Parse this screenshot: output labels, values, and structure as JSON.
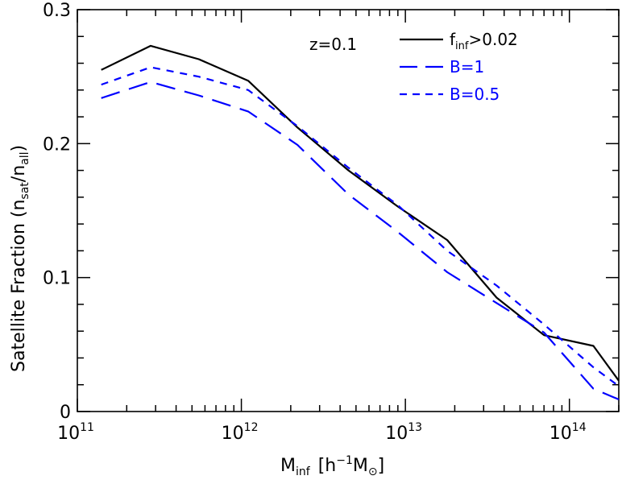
{
  "chart_data": {
    "type": "line",
    "x_scale": "log",
    "xlim": [
      100000000000.0,
      200000000000000.0
    ],
    "ylim": [
      0,
      0.3
    ],
    "grid": false,
    "legend_placement": "top-right",
    "title": "",
    "xlabel": {
      "main": "M",
      "sub": "inf",
      "bracket_open": "[h",
      "exp": "−1",
      "unit": "M",
      "unit_sub": "⊙",
      "bracket_close": "]"
    },
    "ylabel": {
      "main": "Satellite Fraction (n",
      "sub1": "sat",
      "mid": "/n",
      "sub2": "all",
      "close": ")"
    },
    "annotation": "z=0.1",
    "x_ticks": [
      {
        "value": 100000000000.0,
        "base": "10",
        "exp": "11"
      },
      {
        "value": 1000000000000.0,
        "base": "10",
        "exp": "12"
      },
      {
        "value": 10000000000000.0,
        "base": "10",
        "exp": "13"
      },
      {
        "value": 100000000000000.0,
        "base": "10",
        "exp": "14"
      }
    ],
    "y_ticks": [
      {
        "value": 0,
        "label": "0"
      },
      {
        "value": 0.1,
        "label": "0.1"
      },
      {
        "value": 0.2,
        "label": "0.2"
      },
      {
        "value": 0.3,
        "label": "0.3"
      }
    ],
    "series": [
      {
        "name": "f>0.02",
        "legend": {
          "main": "f",
          "sub": "inf",
          "rest": ">0.02"
        },
        "color": "#000000",
        "dash": "solid",
        "x": [
          140000000000.0,
          280000000000.0,
          550000000000.0,
          1100000000000.0,
          2200000000000.0,
          4500000000000.0,
          9000000000000.0,
          18000000000000.0,
          36000000000000.0,
          70000000000000.0,
          140000000000000.0,
          200000000000000.0
        ],
        "y": [
          0.255,
          0.273,
          0.263,
          0.247,
          0.212,
          0.18,
          0.153,
          0.128,
          0.085,
          0.057,
          0.049,
          0.023
        ]
      },
      {
        "name": "B=1",
        "legend": {
          "main": "B=1",
          "sub": "",
          "rest": ""
        },
        "color": "#0000ff",
        "dash": "long",
        "x": [
          140000000000.0,
          280000000000.0,
          550000000000.0,
          1100000000000.0,
          2200000000000.0,
          4500000000000.0,
          9000000000000.0,
          18000000000000.0,
          36000000000000.0,
          70000000000000.0,
          140000000000000.0,
          200000000000000.0
        ],
        "y": [
          0.234,
          0.246,
          0.236,
          0.224,
          0.199,
          0.162,
          0.134,
          0.104,
          0.081,
          0.059,
          0.017,
          0.009
        ]
      },
      {
        "name": "B=0.5",
        "legend": {
          "main": "B=0.5",
          "sub": "",
          "rest": ""
        },
        "color": "#0000ff",
        "dash": "short",
        "x": [
          140000000000.0,
          280000000000.0,
          550000000000.0,
          1100000000000.0,
          2200000000000.0,
          4500000000000.0,
          9000000000000.0,
          18000000000000.0,
          36000000000000.0,
          70000000000000.0,
          140000000000000.0,
          200000000000000.0
        ],
        "y": [
          0.244,
          0.257,
          0.25,
          0.24,
          0.213,
          0.182,
          0.154,
          0.12,
          0.094,
          0.065,
          0.033,
          0.019
        ]
      }
    ]
  }
}
